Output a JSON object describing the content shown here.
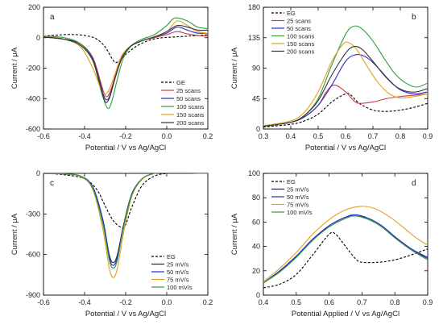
{
  "chart_data": [
    {
      "panel": "a",
      "type": "line",
      "xlabel": "Potential  / V vs Ag/AgCl",
      "ylabel": "Current / μA",
      "xlim": [
        -0.6,
        0.2
      ],
      "ylim": [
        -600,
        200
      ],
      "xticks": [
        -0.6,
        -0.4,
        -0.2,
        0.0,
        0.2
      ],
      "xtick_labels": [
        "-0.6",
        "-0.4",
        "-0.2",
        "0.0",
        "0.2"
      ],
      "yticks": [
        -600,
        -400,
        -200,
        0,
        200
      ],
      "ytick_labels": [
        "-600",
        "-400",
        "-200",
        "0",
        "200"
      ],
      "legend_position": "lower-right",
      "series": [
        {
          "name": "GE",
          "color": "#000000",
          "dash": true,
          "x": [
            -0.6,
            -0.5,
            -0.44,
            -0.38,
            -0.34,
            -0.3,
            -0.26,
            -0.24,
            -0.2,
            -0.14,
            -0.08,
            -0.02,
            0.04,
            0.1,
            0.16,
            0.2
          ],
          "y": [
            10,
            20,
            20,
            10,
            -10,
            -60,
            -150,
            -160,
            -110,
            -50,
            -15,
            0,
            5,
            10,
            15,
            20
          ]
        },
        {
          "name": "25 scans",
          "color": "#d03a3a",
          "x": [
            -0.6,
            -0.5,
            -0.42,
            -0.36,
            -0.32,
            -0.3,
            -0.28,
            -0.25,
            -0.22,
            -0.18,
            -0.12,
            -0.06,
            0.0,
            0.05,
            0.1,
            0.15,
            0.2
          ],
          "y": [
            5,
            -10,
            -40,
            -130,
            -300,
            -380,
            -370,
            -250,
            -130,
            -60,
            -20,
            0,
            20,
            40,
            25,
            15,
            10
          ]
        },
        {
          "name": "50 scans",
          "color": "#2a2ad0",
          "x": [
            -0.6,
            -0.5,
            -0.42,
            -0.36,
            -0.32,
            -0.3,
            -0.28,
            -0.25,
            -0.22,
            -0.18,
            -0.12,
            -0.06,
            0.0,
            0.05,
            0.1,
            0.15,
            0.2
          ],
          "y": [
            5,
            -10,
            -40,
            -140,
            -320,
            -400,
            -390,
            -260,
            -140,
            -60,
            -20,
            5,
            30,
            70,
            50,
            30,
            30
          ]
        },
        {
          "name": "100 scans",
          "color": "#2e9e3e",
          "x": [
            -0.6,
            -0.5,
            -0.42,
            -0.36,
            -0.32,
            -0.29,
            -0.27,
            -0.24,
            -0.21,
            -0.17,
            -0.12,
            -0.06,
            0.0,
            0.04,
            0.1,
            0.15,
            0.2
          ],
          "y": [
            10,
            0,
            -40,
            -150,
            -350,
            -460,
            -430,
            -270,
            -130,
            -50,
            -10,
            20,
            80,
            130,
            110,
            70,
            60
          ]
        },
        {
          "name": "150 scans",
          "color": "#e0a020",
          "x": [
            -0.6,
            -0.5,
            -0.42,
            -0.36,
            -0.32,
            -0.3,
            -0.28,
            -0.25,
            -0.22,
            -0.18,
            -0.12,
            -0.06,
            0.0,
            0.05,
            0.1,
            0.15,
            0.2
          ],
          "y": [
            10,
            -10,
            -60,
            -200,
            -340,
            -370,
            -340,
            -230,
            -120,
            -60,
            -20,
            5,
            40,
            110,
            80,
            40,
            30
          ]
        },
        {
          "name": "200 scans",
          "color": "#333333",
          "x": [
            -0.6,
            -0.5,
            -0.42,
            -0.36,
            -0.32,
            -0.3,
            -0.28,
            -0.25,
            -0.22,
            -0.18,
            -0.12,
            -0.06,
            0.0,
            0.05,
            0.1,
            0.15,
            0.2
          ],
          "y": [
            5,
            -10,
            -50,
            -150,
            -330,
            -420,
            -400,
            -260,
            -140,
            -60,
            -20,
            5,
            40,
            80,
            70,
            50,
            50
          ]
        }
      ]
    },
    {
      "panel": "b",
      "type": "line",
      "xlabel": "Potential  / V vs Ag/AgCl",
      "ylabel": "Current / μA",
      "xlim": [
        0.3,
        0.9
      ],
      "ylim": [
        0,
        180
      ],
      "xticks": [
        0.3,
        0.4,
        0.5,
        0.6,
        0.7,
        0.8,
        0.9
      ],
      "xtick_labels": [
        "0.3",
        "0.4",
        "0.5",
        "0.6",
        "0.7",
        "0.8",
        "0.9"
      ],
      "yticks": [
        0,
        45,
        90,
        135,
        180
      ],
      "ytick_labels": [
        "0",
        "45",
        "90",
        "135",
        "180"
      ],
      "legend_position": "top-left",
      "series": [
        {
          "name": "EG",
          "color": "#000000",
          "dash": true,
          "x": [
            0.3,
            0.4,
            0.45,
            0.5,
            0.55,
            0.6,
            0.62,
            0.65,
            0.7,
            0.75,
            0.8,
            0.85,
            0.9
          ],
          "y": [
            3,
            7,
            12,
            22,
            40,
            52,
            50,
            38,
            28,
            26,
            28,
            32,
            38
          ]
        },
        {
          "name": "25 scans",
          "color": "#d03a3a",
          "x": [
            0.3,
            0.4,
            0.45,
            0.5,
            0.53,
            0.56,
            0.6,
            0.63,
            0.65,
            0.7,
            0.75,
            0.8,
            0.85,
            0.9
          ],
          "y": [
            4,
            10,
            18,
            35,
            55,
            65,
            55,
            42,
            38,
            40,
            45,
            48,
            50,
            52
          ]
        },
        {
          "name": "50 scans",
          "color": "#2a2ad0",
          "x": [
            0.3,
            0.4,
            0.45,
            0.5,
            0.55,
            0.6,
            0.64,
            0.68,
            0.72,
            0.76,
            0.8,
            0.85,
            0.9
          ],
          "y": [
            4,
            10,
            18,
            35,
            65,
            100,
            110,
            105,
            90,
            72,
            58,
            52,
            55
          ]
        },
        {
          "name": "100 scans",
          "color": "#2e9e3e",
          "x": [
            0.3,
            0.4,
            0.45,
            0.5,
            0.55,
            0.6,
            0.63,
            0.66,
            0.7,
            0.74,
            0.78,
            0.82,
            0.86,
            0.9
          ],
          "y": [
            4,
            10,
            20,
            45,
            95,
            140,
            152,
            148,
            130,
            105,
            82,
            68,
            62,
            68
          ]
        },
        {
          "name": "150 scans",
          "color": "#e0a020",
          "x": [
            0.3,
            0.4,
            0.45,
            0.5,
            0.55,
            0.59,
            0.61,
            0.64,
            0.68,
            0.72,
            0.76,
            0.8,
            0.85,
            0.9
          ],
          "y": [
            5,
            12,
            25,
            55,
            100,
            125,
            128,
            118,
            92,
            68,
            52,
            46,
            48,
            52
          ]
        },
        {
          "name": "200 scans",
          "color": "#333333",
          "x": [
            0.3,
            0.4,
            0.45,
            0.5,
            0.55,
            0.6,
            0.63,
            0.66,
            0.7,
            0.74,
            0.78,
            0.82,
            0.86,
            0.9
          ],
          "y": [
            4,
            10,
            20,
            42,
            80,
            112,
            122,
            118,
            100,
            80,
            64,
            56,
            55,
            60
          ]
        }
      ]
    },
    {
      "panel": "c",
      "type": "line",
      "xlabel": "Potential  / V vs Ag/AgCl",
      "ylabel": "Current / μA",
      "xlim": [
        -0.6,
        0.2
      ],
      "ylim": [
        -900,
        0
      ],
      "xticks": [
        -0.6,
        -0.4,
        -0.2,
        0.0,
        0.2
      ],
      "xtick_labels": [
        "-0.6",
        "-0.4",
        "-0.2",
        "0.0",
        "0.2"
      ],
      "yticks": [
        -900,
        -600,
        -300,
        0
      ],
      "ytick_labels": [
        "-900",
        "-600",
        "-300",
        "0"
      ],
      "legend_position": "lower-right",
      "series": [
        {
          "name": "EG",
          "color": "#000000",
          "dash": true,
          "x": [
            -0.6,
            -0.5,
            -0.4,
            -0.34,
            -0.3,
            -0.26,
            -0.22,
            -0.2,
            -0.17,
            -0.12,
            -0.06,
            0.0,
            0.06,
            0.12,
            0.2
          ],
          "y": [
            0,
            -10,
            -40,
            -120,
            -240,
            -350,
            -400,
            -380,
            -250,
            -90,
            -20,
            0,
            10,
            5,
            0
          ]
        },
        {
          "name": "25 mV/s",
          "color": "#222244",
          "x": [
            -0.6,
            -0.5,
            -0.42,
            -0.36,
            -0.31,
            -0.28,
            -0.26,
            -0.24,
            -0.21,
            -0.17,
            -0.12,
            -0.06,
            0.0,
            0.05,
            0.1,
            0.2
          ],
          "y": [
            0,
            -5,
            -20,
            -100,
            -350,
            -600,
            -660,
            -600,
            -380,
            -150,
            -40,
            0,
            10,
            30,
            10,
            0
          ]
        },
        {
          "name": "50 mV/s",
          "color": "#2a2ad0",
          "x": [
            -0.6,
            -0.5,
            -0.42,
            -0.36,
            -0.31,
            -0.28,
            -0.26,
            -0.24,
            -0.21,
            -0.17,
            -0.12,
            -0.06,
            0.0,
            0.05,
            0.1,
            0.2
          ],
          "y": [
            0,
            -5,
            -20,
            -100,
            -350,
            -620,
            -680,
            -620,
            -390,
            -155,
            -40,
            0,
            10,
            25,
            10,
            0
          ]
        },
        {
          "name": "75 mV/s",
          "color": "#e0a020",
          "x": [
            -0.6,
            -0.5,
            -0.42,
            -0.36,
            -0.31,
            -0.28,
            -0.26,
            -0.24,
            -0.21,
            -0.17,
            -0.12,
            -0.06,
            0.0,
            0.05,
            0.1,
            0.2
          ],
          "y": [
            0,
            -5,
            -25,
            -120,
            -420,
            -700,
            -770,
            -700,
            -440,
            -170,
            -45,
            0,
            10,
            20,
            5,
            0
          ]
        },
        {
          "name": "100 mV/s",
          "color": "#2e9e3e",
          "x": [
            -0.6,
            -0.5,
            -0.42,
            -0.36,
            -0.31,
            -0.28,
            -0.26,
            -0.24,
            -0.21,
            -0.17,
            -0.12,
            -0.06,
            0.0,
            0.05,
            0.1,
            0.2
          ],
          "y": [
            0,
            -5,
            -20,
            -110,
            -380,
            -640,
            -700,
            -640,
            -400,
            -160,
            -40,
            0,
            10,
            20,
            5,
            0
          ]
        }
      ]
    },
    {
      "panel": "d",
      "type": "line",
      "xlabel": "Potential Applied / V vs Ag/AgCl",
      "ylabel": "Current / μA",
      "xlim": [
        0.4,
        0.9
      ],
      "ylim": [
        0,
        100
      ],
      "xticks": [
        0.4,
        0.5,
        0.6,
        0.7,
        0.8,
        0.9
      ],
      "xtick_labels": [
        "0.4",
        "0.5",
        "0.6",
        "0.7",
        "0.8",
        "0.9"
      ],
      "yticks": [
        0,
        20,
        40,
        60,
        80,
        100
      ],
      "ytick_labels": [
        "0",
        "20",
        "40",
        "60",
        "80",
        "100"
      ],
      "legend_position": "top-left",
      "series": [
        {
          "name": "EG",
          "color": "#000000",
          "dash": true,
          "x": [
            0.4,
            0.45,
            0.5,
            0.55,
            0.6,
            0.62,
            0.65,
            0.68,
            0.7,
            0.75,
            0.8,
            0.85,
            0.9
          ],
          "y": [
            6,
            9,
            17,
            33,
            50,
            50,
            40,
            30,
            27,
            27,
            29,
            33,
            38
          ]
        },
        {
          "name": "25 mV/s",
          "color": "#222244",
          "x": [
            0.4,
            0.45,
            0.5,
            0.55,
            0.6,
            0.65,
            0.68,
            0.72,
            0.76,
            0.8,
            0.85,
            0.9
          ],
          "y": [
            10,
            20,
            32,
            45,
            57,
            64,
            65,
            63,
            57,
            48,
            38,
            30
          ]
        },
        {
          "name": "50 mV/s",
          "color": "#2a2ad0",
          "x": [
            0.4,
            0.45,
            0.5,
            0.55,
            0.6,
            0.65,
            0.68,
            0.72,
            0.76,
            0.8,
            0.85,
            0.9
          ],
          "y": [
            10,
            20,
            32,
            46,
            57,
            64,
            66,
            63,
            57,
            48,
            38,
            31
          ]
        },
        {
          "name": "75 mV/s",
          "color": "#e0a020",
          "x": [
            0.4,
            0.45,
            0.5,
            0.55,
            0.6,
            0.65,
            0.7,
            0.74,
            0.78,
            0.82,
            0.86,
            0.9
          ],
          "y": [
            11,
            22,
            35,
            50,
            62,
            70,
            73,
            71,
            65,
            57,
            48,
            41
          ]
        },
        {
          "name": "100 mV/s",
          "color": "#2e9e3e",
          "x": [
            0.4,
            0.45,
            0.5,
            0.55,
            0.6,
            0.65,
            0.68,
            0.72,
            0.76,
            0.8,
            0.85,
            0.9
          ],
          "y": [
            10,
            19,
            31,
            45,
            56,
            63,
            65,
            62,
            56,
            47,
            37,
            29
          ]
        }
      ]
    }
  ]
}
